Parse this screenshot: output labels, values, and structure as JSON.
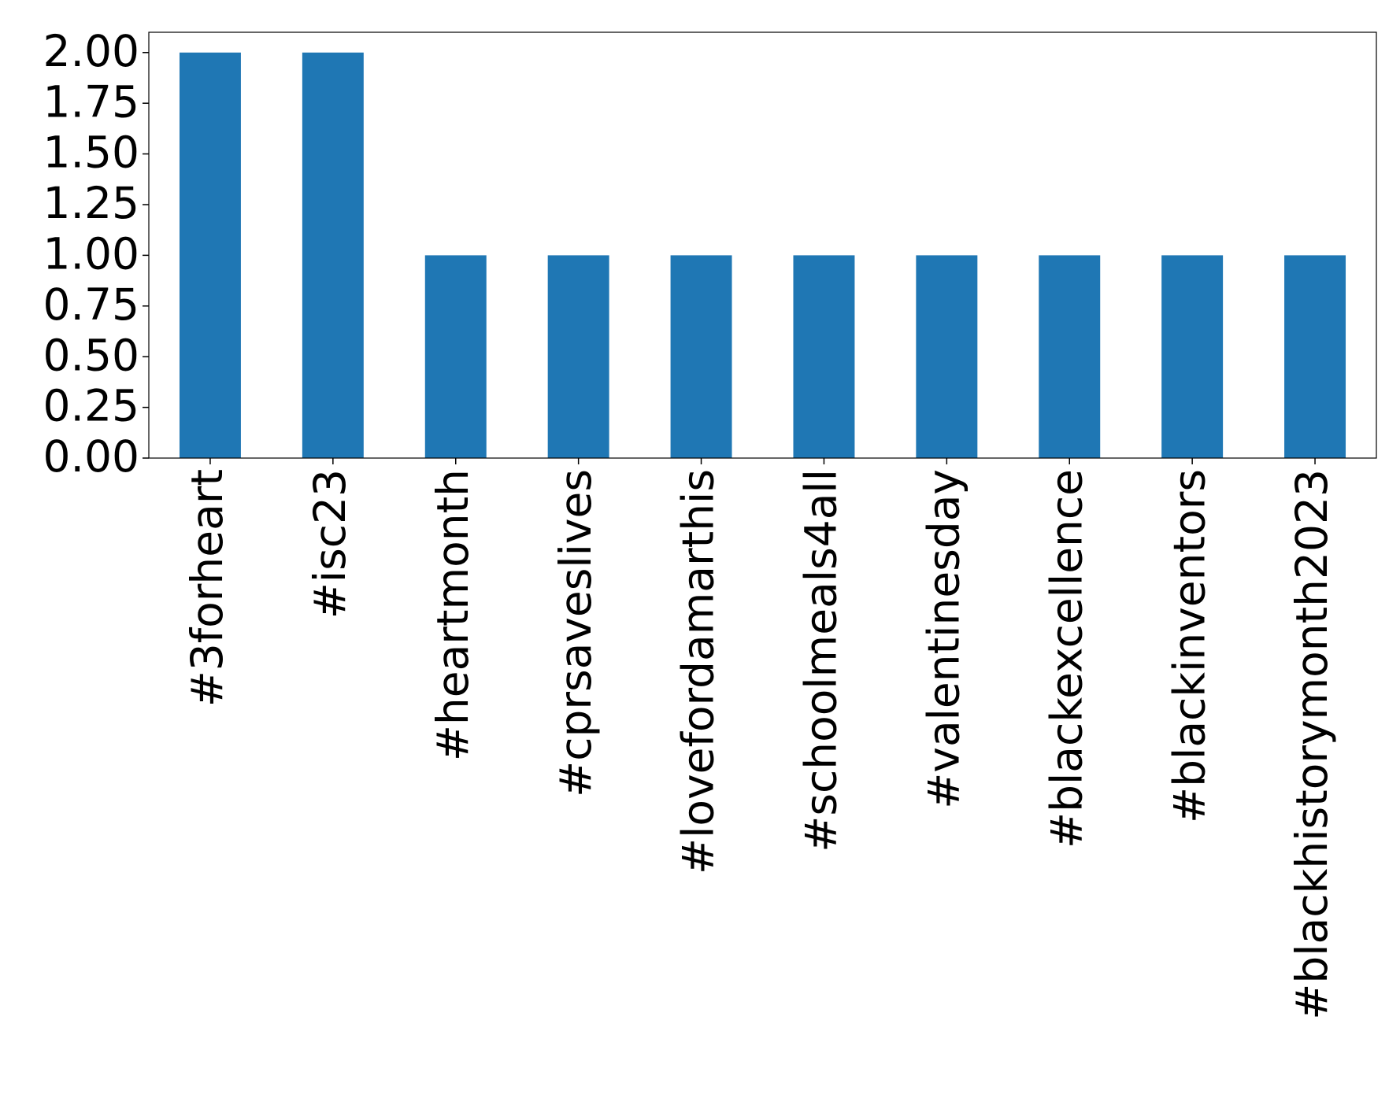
{
  "chart_data": {
    "type": "bar",
    "categories": [
      "#3forheart",
      "#isc23",
      "#heartmonth",
      "#cprsaveslives",
      "#lovefordamarthis",
      "#schoolmeals4all",
      "#valentinesday",
      "#blackexcellence",
      "#blackinventors",
      "#blackhistorymonth2023"
    ],
    "values": [
      2,
      2,
      1,
      1,
      1,
      1,
      1,
      1,
      1,
      1
    ],
    "color": "#1f77b4",
    "ylim": [
      0,
      2.1
    ],
    "yticks": [
      {
        "value": 0,
        "label": "0.00"
      },
      {
        "value": 0.25,
        "label": "0.25"
      },
      {
        "value": 0.5,
        "label": "0.50"
      },
      {
        "value": 0.75,
        "label": "0.75"
      },
      {
        "value": 1,
        "label": "1.00"
      },
      {
        "value": 1.25,
        "label": "1.25"
      },
      {
        "value": 1.5,
        "label": "1.50"
      },
      {
        "value": 1.75,
        "label": "1.75"
      },
      {
        "value": 2,
        "label": "2.00"
      }
    ],
    "grid": false
  }
}
